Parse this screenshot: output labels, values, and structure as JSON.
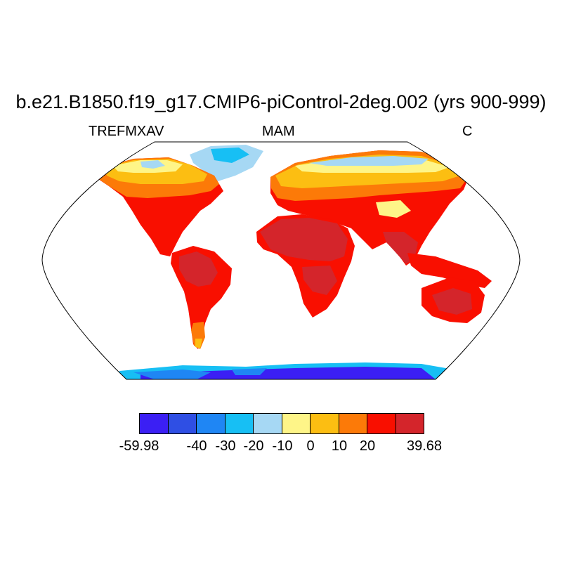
{
  "title": "b.e21.B1850.f19_g17.CMIP6-piControl-2deg.002 (yrs 900-999)",
  "subtitle": {
    "left": "TREFMXAV",
    "center": "MAM",
    "right": "C"
  },
  "colorbar": {
    "colors": [
      "#3b1ff4",
      "#2f4fe4",
      "#1f86f4",
      "#17bff4",
      "#a6d8f4",
      "#fef588",
      "#fcbe12",
      "#fc7a08",
      "#f90f00",
      "#d4252b"
    ],
    "tick_labels": [
      "-59.98",
      "-40",
      "-30",
      "-20",
      "-10",
      "0",
      "10",
      "20",
      "39.68"
    ]
  },
  "legend_palette": {
    "ocean": "#ffffff",
    "outline": "#000000"
  }
}
